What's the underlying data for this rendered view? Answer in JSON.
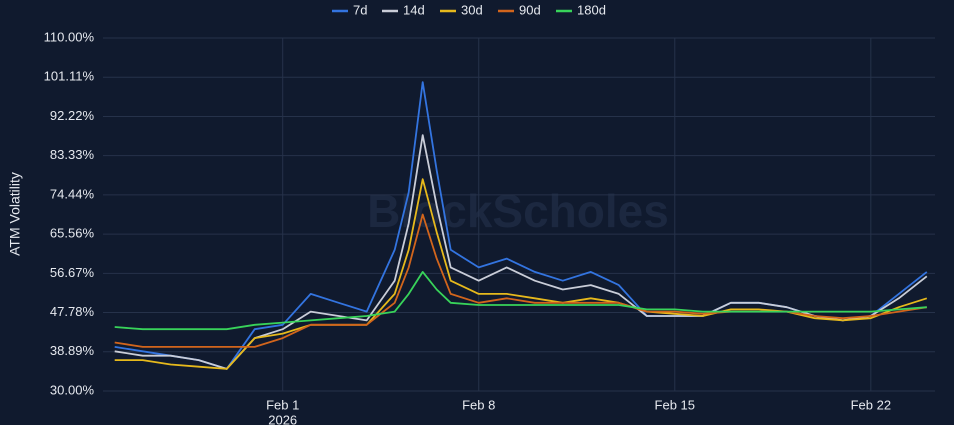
{
  "chart_data": {
    "type": "line",
    "y_label": "ATM Volatility",
    "watermark": "BlockScholes",
    "x": [
      "2026-01-26T00:00",
      "2026-01-27T00:00",
      "2026-01-28T00:00",
      "2026-01-29T00:00",
      "2026-01-30T00:00",
      "2026-01-31T00:00",
      "2026-02-01T00:00",
      "2026-02-02T00:00",
      "2026-02-03T00:00",
      "2026-02-04T00:00",
      "2026-02-05T00:00",
      "2026-02-05T12:00",
      "2026-02-06T00:00",
      "2026-02-06T12:00",
      "2026-02-07T00:00",
      "2026-02-08T00:00",
      "2026-02-09T00:00",
      "2026-02-10T00:00",
      "2026-02-11T00:00",
      "2026-02-12T00:00",
      "2026-02-13T00:00",
      "2026-02-14T00:00",
      "2026-02-15T00:00",
      "2026-02-16T00:00",
      "2026-02-17T00:00",
      "2026-02-18T00:00",
      "2026-02-19T00:00",
      "2026-02-20T00:00",
      "2026-02-21T00:00",
      "2026-02-22T00:00",
      "2026-02-23T00:00",
      "2026-02-24T00:00"
    ],
    "xlim": [
      "2026-01-25T14:00",
      "2026-02-24T07:00"
    ],
    "xticks": [
      {
        "value": "2026-02-01T00:00",
        "label": "Feb 1",
        "sublabel": "2026"
      },
      {
        "value": "2026-02-08T00:00",
        "label": "Feb 8"
      },
      {
        "value": "2026-02-15T00:00",
        "label": "Feb 15"
      },
      {
        "value": "2026-02-22T00:00",
        "label": "Feb 22"
      }
    ],
    "ylim": [
      30,
      110
    ],
    "yticks": [
      {
        "value": 30,
        "label": "30.00%"
      },
      {
        "value": 38.89,
        "label": "38.89%"
      },
      {
        "value": 47.78,
        "label": "47.78%"
      },
      {
        "value": 56.67,
        "label": "56.67%"
      },
      {
        "value": 65.56,
        "label": "65.56%"
      },
      {
        "value": 74.44,
        "label": "74.44%"
      },
      {
        "value": 83.33,
        "label": "83.33%"
      },
      {
        "value": 92.22,
        "label": "92.22%"
      },
      {
        "value": 101.11,
        "label": "101.11%"
      },
      {
        "value": 110,
        "label": "110.00%"
      }
    ],
    "grid": true,
    "legend": "top",
    "series": [
      {
        "name": "7d",
        "color": "#3374e0",
        "values": [
          40,
          39,
          38,
          37,
          35,
          44,
          45,
          52,
          50,
          48,
          62,
          75,
          100,
          80,
          62,
          58,
          60,
          57,
          55,
          57,
          54,
          47,
          47,
          47,
          50,
          50,
          49,
          47,
          46,
          47,
          52,
          57
        ]
      },
      {
        "name": "14d",
        "color": "#c9cdd8",
        "values": [
          39,
          38,
          38,
          37,
          35,
          42,
          44,
          48,
          47,
          46,
          55,
          68,
          88,
          72,
          58,
          55,
          58,
          55,
          53,
          54,
          52,
          47,
          47,
          47,
          50,
          50,
          49,
          47,
          46,
          47,
          51,
          56
        ]
      },
      {
        "name": "30d",
        "color": "#e6b91c",
        "values": [
          37,
          37,
          36,
          35.5,
          35,
          42,
          43,
          45,
          45,
          45,
          52,
          62,
          78,
          66,
          55,
          52,
          52,
          51,
          50,
          51,
          50,
          48,
          47.5,
          47,
          48.5,
          48.5,
          48,
          46.5,
          46,
          46.5,
          49,
          51
        ]
      },
      {
        "name": "90d",
        "color": "#d2651c",
        "values": [
          41,
          40,
          40,
          40,
          40,
          40,
          42,
          45,
          45,
          45,
          50,
          58,
          70,
          60,
          52,
          50,
          51,
          50,
          50,
          50,
          50,
          48,
          48,
          47.5,
          48,
          48,
          48,
          47,
          46.5,
          47,
          48,
          49
        ]
      },
      {
        "name": "180d",
        "color": "#38d35a",
        "values": [
          44.5,
          44,
          44,
          44,
          44,
          45,
          45.5,
          46,
          46.5,
          47,
          48,
          52,
          57,
          53,
          50,
          49.5,
          49.5,
          49.5,
          49.5,
          49.5,
          49.5,
          48.5,
          48.5,
          48,
          48,
          48,
          48,
          48,
          48,
          48,
          48.5,
          49
        ]
      }
    ]
  }
}
